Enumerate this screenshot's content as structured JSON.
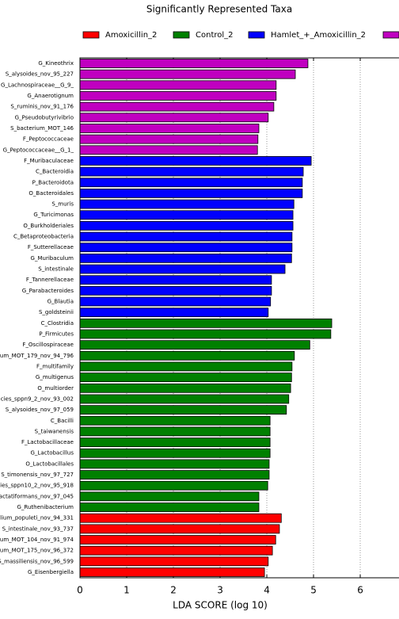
{
  "chart_data": {
    "type": "bar",
    "orientation": "horizontal",
    "title": "Significantly Represented Taxa",
    "xlabel": "LDA SCORE (log 10)",
    "xlim": [
      0,
      6.83
    ],
    "xticks": [
      0,
      1,
      2,
      3,
      4,
      5,
      6
    ],
    "grid": true,
    "series": [
      {
        "name": "Amoxicillin_2",
        "color": "#ff0000",
        "categories": [
          "lium_populeti_nov_94_331",
          "S_intestinale_nov_93_737",
          "um_MOT_104_nov_91_974",
          "um_MOT_175_nov_96_372",
          "S_massiliensis_nov_96_599",
          "G_Eisenbergiella"
        ],
        "values": [
          4.31,
          4.27,
          4.19,
          4.12,
          4.03,
          3.95
        ]
      },
      {
        "name": "Control_2",
        "color": "#008000",
        "categories": [
          "C_Clostridia",
          "P_Firmicutes",
          "F_Oscillospiraceae",
          "um_MOT_179_nov_94_796",
          "F_multifamily",
          "G_multigenus",
          "O_multiorder",
          "cies_sppn9_2_nov_93_002",
          "S_alysoides_nov_97_059",
          "C_Bacilli",
          "S_taiwanensis",
          "F_Lactobacillaceae",
          "G_Lactobacillus",
          "O_Lactobacillales",
          "S_timonensis_nov_97_727",
          "ies_sppn10_2_nov_95_918",
          "lactatiformans_nov_97_045",
          "G_Ruthenibacterium"
        ],
        "values": [
          5.39,
          5.37,
          4.92,
          4.59,
          4.54,
          4.53,
          4.51,
          4.47,
          4.42,
          4.07,
          4.07,
          4.07,
          4.07,
          4.05,
          4.05,
          4.02,
          3.83,
          3.83
        ]
      },
      {
        "name": "Hamlet_+_Amoxicillin_2",
        "color": "#0000ff",
        "categories": [
          "F_Muribaculaceae",
          "C_Bacteroidia",
          "P_Bacteroidota",
          "O_Bacteroidales",
          "S_muris",
          "G_Turicimonas",
          "O_Burkholderiales",
          "C_Betaproteobacteria",
          "F_Sutterellaceae",
          "G_Muribaculum",
          "S_intestinale",
          "F_Tannerellaceae",
          "G_Parabacteroides",
          "G_Blautia",
          "S_goldsteinii"
        ],
        "values": [
          4.95,
          4.78,
          4.76,
          4.76,
          4.58,
          4.56,
          4.56,
          4.54,
          4.54,
          4.53,
          4.39,
          4.1,
          4.1,
          4.08,
          4.03
        ]
      },
      {
        "color": "#c000c0",
        "categories": [
          "G_Kineothrix",
          "S_alysoides_nov_95_227",
          "G_Lachnospiraceae__G_9_",
          "G_Anaerotignum",
          "S_ruminis_nov_91_176",
          "G_Pseudobutyrivibrio",
          "S_bacterium_MOT_146",
          "F_Peptococcaceae",
          "G_Peptococcaceae__G_1_"
        ],
        "values": [
          4.88,
          4.61,
          4.2,
          4.2,
          4.15,
          4.03,
          3.83,
          3.81,
          3.8
        ]
      }
    ]
  }
}
